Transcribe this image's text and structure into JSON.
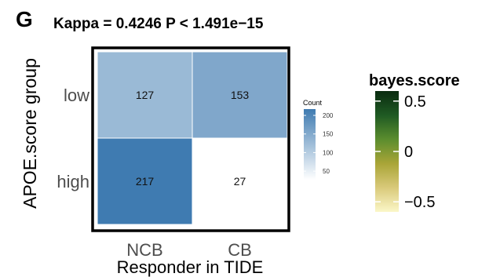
{
  "panel_label": "G",
  "chart_data": {
    "type": "heatmap",
    "title": "Kappa = 0.4246  P < 1.491e−15",
    "xlabel": "Responder in TIDE",
    "ylabel": "APOE.score group",
    "x_categories": [
      "NCB",
      "CB"
    ],
    "y_categories": [
      "low",
      "high"
    ],
    "cells": [
      {
        "x": "NCB",
        "y": "low",
        "value": 127,
        "label": "127"
      },
      {
        "x": "CB",
        "y": "low",
        "value": 153,
        "label": "153"
      },
      {
        "x": "NCB",
        "y": "high",
        "value": 217,
        "label": "217"
      },
      {
        "x": "CB",
        "y": "high",
        "value": 27,
        "label": "27"
      }
    ],
    "count_legend": {
      "title": "Count",
      "ticks": [
        {
          "value": 200,
          "label": "200"
        },
        {
          "value": 150,
          "label": "150"
        },
        {
          "value": 100,
          "label": "100"
        },
        {
          "value": 50,
          "label": "50"
        }
      ],
      "range": [
        27,
        217
      ],
      "colors": [
        "#ffffff",
        "#3f7bb1"
      ]
    },
    "score_legend": {
      "title": "bayes.score",
      "ticks": [
        {
          "value": 0.5,
          "label": "0.5"
        },
        {
          "value": 0,
          "label": "0"
        },
        {
          "value": -0.5,
          "label": "−0.5"
        }
      ],
      "range": [
        -0.6,
        0.6
      ],
      "colors": [
        "#fbf7c8",
        "#d9c97a",
        "#a9a537",
        "#5b8d2e",
        "#1f5a23",
        "#0a2b10"
      ]
    },
    "grid": false,
    "legend_position": "right"
  }
}
